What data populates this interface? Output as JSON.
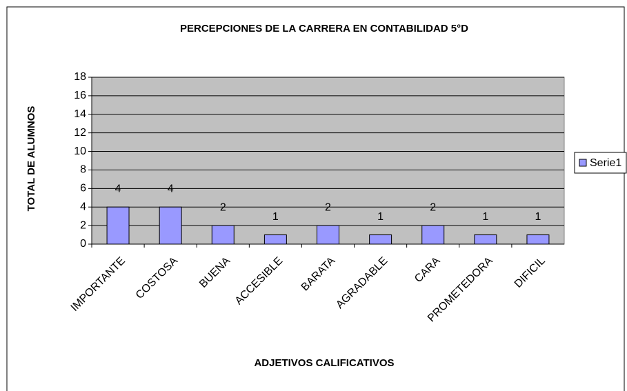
{
  "chart_data": {
    "type": "bar",
    "title": "PERCEPCIONES DE LA CARRERA EN CONTABILIDAD 5°D",
    "x_label": "ADJETIVOS CALIFICATIVOS",
    "y_label": "TOTAL DE ALUMNOS",
    "categories": [
      "IMPORTANTE",
      "COSTOSA",
      "BUENA",
      "ACCESIBLE",
      "BARATA",
      "AGRADABLE",
      "CARA",
      "PROMETEDORA",
      "DIFICIL"
    ],
    "series": [
      {
        "name": "Serie1",
        "color": "#9999ff",
        "values": [
          4,
          4,
          2,
          1,
          2,
          1,
          2,
          1,
          1
        ]
      }
    ],
    "ylim": [
      0,
      18
    ],
    "yticks": [
      0,
      2,
      4,
      6,
      8,
      10,
      12,
      14,
      16,
      18
    ],
    "grid": true,
    "legend": "right"
  }
}
